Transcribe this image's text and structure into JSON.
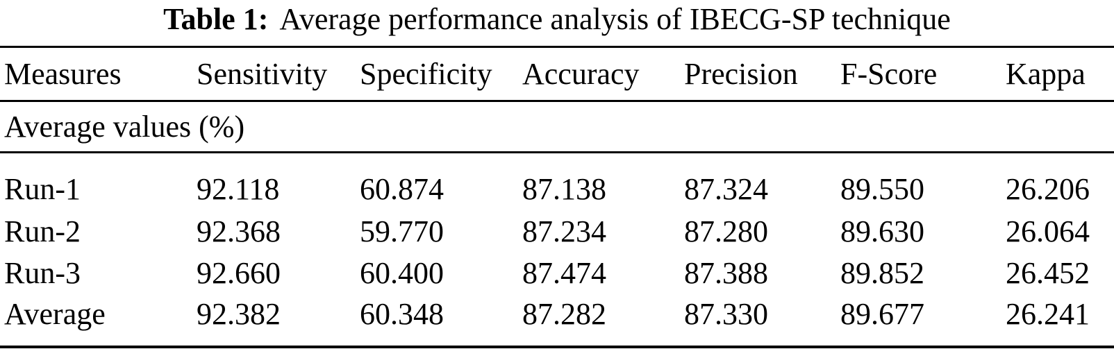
{
  "caption": {
    "label": "Table 1:",
    "text": "Average performance analysis of IBECG-SP technique"
  },
  "table": {
    "columns": [
      "Measures",
      "Sensitivity",
      "Specificity",
      "Accuracy",
      "Precision",
      "F-Score",
      "Kappa"
    ],
    "section": "Average values (%)",
    "rows": [
      [
        "Run-1",
        "92.118",
        "60.874",
        "87.138",
        "87.324",
        "89.550",
        "26.206"
      ],
      [
        "Run-2",
        "92.368",
        "59.770",
        "87.234",
        "87.280",
        "89.630",
        "26.064"
      ],
      [
        "Run-3",
        "92.660",
        "60.400",
        "87.474",
        "87.388",
        "89.852",
        "26.452"
      ],
      [
        "Average",
        "92.382",
        "60.348",
        "87.282",
        "87.330",
        "89.677",
        "26.241"
      ]
    ]
  },
  "colors": {
    "background": "#ffffff",
    "text": "#000000",
    "rule": "#000000"
  }
}
